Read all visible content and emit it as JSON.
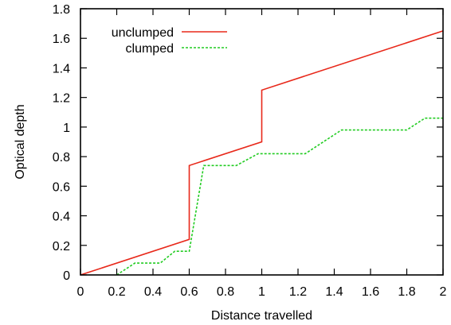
{
  "chart_data": {
    "type": "line",
    "title": "",
    "xlabel": "Distance travelled",
    "ylabel": "Optical depth",
    "xlim": [
      0,
      2
    ],
    "ylim": [
      0,
      1.8
    ],
    "xticks": [
      0,
      0.2,
      0.4,
      0.6,
      0.8,
      1,
      1.2,
      1.4,
      1.6,
      1.8,
      2
    ],
    "yticks": [
      0,
      0.2,
      0.4,
      0.6,
      0.8,
      1,
      1.2,
      1.4,
      1.6,
      1.8
    ],
    "xtick_labels": [
      "0",
      "0.2",
      "0.4",
      "0.6",
      "0.8",
      "1",
      "1.2",
      "1.4",
      "1.6",
      "1.8",
      "2"
    ],
    "ytick_labels": [
      "0",
      "0.2",
      "0.4",
      "0.6",
      "0.8",
      "1",
      "1.2",
      "1.4",
      "1.6",
      "1.8"
    ],
    "grid": false,
    "legend_position": "top-left",
    "series": [
      {
        "name": "unclumped",
        "color": "#e8281a",
        "style": "solid",
        "x": [
          0,
          0.6,
          0.6,
          1.0,
          1.0,
          2.0
        ],
        "y": [
          0.0,
          0.24,
          0.74,
          0.9,
          1.25,
          1.65
        ]
      },
      {
        "name": "clumped",
        "color": "#22cc22",
        "style": "dashed",
        "x": [
          0.2,
          0.3,
          0.44,
          0.52,
          0.6,
          0.68,
          0.86,
          0.98,
          1.24,
          1.44,
          1.8,
          1.9,
          2.0
        ],
        "y": [
          0.0,
          0.08,
          0.08,
          0.16,
          0.16,
          0.74,
          0.74,
          0.82,
          0.82,
          0.98,
          0.98,
          1.06,
          1.06
        ]
      }
    ]
  }
}
